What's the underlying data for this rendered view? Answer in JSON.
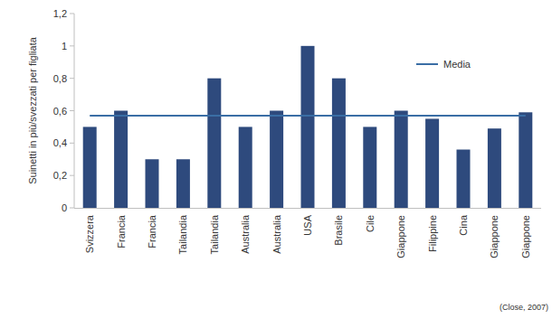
{
  "chart_data": {
    "type": "bar",
    "y_label": "Suinetti in più/svezzati per figliata",
    "source": "(Close, 2007)",
    "categories": [
      "Svizzera",
      "Francia",
      "Francia",
      "Tailandia",
      "Tailandia",
      "Australia",
      "Australia",
      "USA",
      "Brasile",
      "Cile",
      "Giappone",
      "Filippine",
      "Cina",
      "Giappone",
      "Giappone"
    ],
    "series": [
      {
        "type": "bar",
        "color": "#2e4a7d",
        "values": [
          0.5,
          0.6,
          0.3,
          0.3,
          0.8,
          0.5,
          0.6,
          1.0,
          0.8,
          0.5,
          0.6,
          0.55,
          0.36,
          0.49,
          0.59
        ]
      },
      {
        "name": "Media",
        "type": "line",
        "color": "#3a6ea5",
        "values": [
          0.57,
          0.57,
          0.57,
          0.57,
          0.57,
          0.57,
          0.57,
          0.57,
          0.57,
          0.57,
          0.57,
          0.57,
          0.57,
          0.57,
          0.57
        ]
      }
    ],
    "ylim": [
      0,
      1.2
    ],
    "yticks": [
      0,
      {
        "value": 0.2,
        "label": "0,2"
      },
      {
        "value": 0.4,
        "label": "0,4"
      },
      {
        "value": 0.6,
        "label": "0,6"
      },
      {
        "value": 0.8,
        "label": "0,8"
      },
      1,
      {
        "value": 1.2,
        "label": "1,2"
      }
    ],
    "grid": false,
    "legend": "upper right"
  }
}
